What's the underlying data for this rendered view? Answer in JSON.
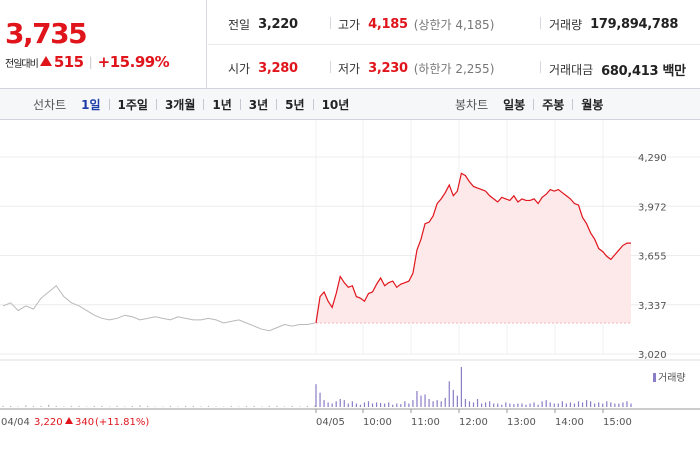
{
  "quote": {
    "price": "3,735",
    "change_label": "전일대비",
    "change_value": "515",
    "change_rate": "+15.99%",
    "prev_close": {
      "label": "전일",
      "value": "3,220"
    },
    "open": {
      "label": "시가",
      "value": "3,280"
    },
    "high": {
      "label": "고가",
      "value": "4,185",
      "note": "(상한가 4,185)"
    },
    "low": {
      "label": "저가",
      "value": "3,230",
      "note": "(하한가 2,255)"
    },
    "volume": {
      "label": "거래량",
      "value": "179,894,788"
    },
    "amount": {
      "label": "거래대금",
      "value": "680,413 백만"
    }
  },
  "line_tabs": {
    "title": "선차트",
    "items": [
      {
        "label": "1일",
        "active": true
      },
      {
        "label": "1주일",
        "active": false
      },
      {
        "label": "3개월",
        "active": false
      },
      {
        "label": "1년",
        "active": false
      },
      {
        "label": "3년",
        "active": false
      },
      {
        "label": "5년",
        "active": false
      },
      {
        "label": "10년",
        "active": false
      }
    ]
  },
  "candle_tabs": {
    "title": "봉차트",
    "items": [
      {
        "label": "일봉"
      },
      {
        "label": "주봉"
      },
      {
        "label": "월봉"
      }
    ]
  },
  "colors": {
    "up": "#e0151c",
    "prev_line": "#b9b9b9",
    "area_fill": "#fde8ea",
    "volume": "#8a7cc6",
    "active_tab": "#1d3da5"
  },
  "chart_data": {
    "type": "line",
    "ylim": [
      3020,
      4290
    ],
    "y_ticks": [
      "4,290",
      "3,972",
      "3,655",
      "3,337",
      "3,020"
    ],
    "baseline": 3220,
    "x_ticks": [
      "04/04",
      "04/05",
      "10:00",
      "11:00",
      "12:00",
      "13:00",
      "14:00",
      "15:00"
    ],
    "prev_day_info": {
      "date": "04/04",
      "close": "3,220",
      "change": "340",
      "rate": "(+11.81%)"
    },
    "legend_volume": "거래량",
    "prev_day_series": {
      "name": "04/04",
      "values": [
        3330,
        3350,
        3300,
        3330,
        3310,
        3380,
        3420,
        3460,
        3390,
        3350,
        3330,
        3300,
        3270,
        3250,
        3240,
        3250,
        3270,
        3260,
        3240,
        3250,
        3260,
        3250,
        3240,
        3260,
        3250,
        3240,
        3240,
        3250,
        3240,
        3220,
        3230,
        3240,
        3220,
        3200,
        3180,
        3170,
        3190,
        3210,
        3200,
        3210,
        3210,
        3220
      ]
    },
    "today_series": {
      "name": "04/05",
      "x": [
        "09:00",
        "09:05",
        "09:10",
        "09:15",
        "09:20",
        "09:25",
        "09:30",
        "09:35",
        "09:40",
        "09:45",
        "09:50",
        "09:55",
        "10:00",
        "10:05",
        "10:10",
        "10:15",
        "10:20",
        "10:25",
        "10:30",
        "10:35",
        "10:40",
        "10:45",
        "10:50",
        "10:55",
        "11:00",
        "11:05",
        "11:10",
        "11:15",
        "11:20",
        "11:25",
        "11:30",
        "11:35",
        "11:40",
        "11:45",
        "11:50",
        "11:55",
        "12:00",
        "12:05",
        "12:10",
        "12:15",
        "12:20",
        "12:25",
        "12:30",
        "12:35",
        "12:40",
        "12:45",
        "12:50",
        "12:55",
        "13:00",
        "13:05",
        "13:10",
        "13:15",
        "13:20",
        "13:25",
        "13:30",
        "13:35",
        "13:40",
        "13:45",
        "13:50",
        "13:55",
        "14:00",
        "14:05",
        "14:10",
        "14:15",
        "14:20",
        "14:25",
        "14:30",
        "14:35",
        "14:40",
        "14:45",
        "14:50",
        "14:55",
        "15:00",
        "15:05",
        "15:10",
        "15:15",
        "15:20",
        "15:25",
        "15:30"
      ],
      "values": [
        3220,
        3390,
        3420,
        3360,
        3320,
        3410,
        3520,
        3480,
        3450,
        3460,
        3390,
        3380,
        3360,
        3410,
        3420,
        3470,
        3510,
        3460,
        3480,
        3490,
        3450,
        3470,
        3480,
        3490,
        3540,
        3690,
        3760,
        3860,
        3870,
        3910,
        3990,
        4020,
        4060,
        4110,
        4040,
        4070,
        4185,
        4170,
        4130,
        4100,
        4090,
        4080,
        4070,
        4040,
        4020,
        4000,
        4030,
        4020,
        4010,
        4040,
        4000,
        4020,
        4010,
        4010,
        4020,
        3990,
        4030,
        4050,
        4080,
        4070,
        4080,
        4060,
        4040,
        4020,
        3990,
        3980,
        3900,
        3860,
        3800,
        3760,
        3700,
        3680,
        3650,
        3630,
        3660,
        3690,
        3720,
        3735,
        3735
      ]
    },
    "volume_prev": [
      2,
      2,
      1,
      3,
      2,
      2,
      4,
      2,
      1,
      2,
      2,
      1,
      2,
      2,
      1,
      2,
      1,
      2,
      3,
      2,
      1,
      1,
      2,
      1,
      2,
      2,
      1,
      2,
      1,
      1,
      2,
      1,
      2,
      2,
      1,
      2,
      2,
      1,
      2,
      1,
      2,
      3
    ],
    "volume_today": [
      40,
      25,
      12,
      8,
      6,
      10,
      14,
      12,
      6,
      10,
      6,
      4,
      8,
      10,
      6,
      8,
      7,
      6,
      8,
      4,
      6,
      5,
      10,
      6,
      12,
      28,
      20,
      22,
      14,
      10,
      12,
      10,
      16,
      45,
      30,
      20,
      70,
      14,
      10,
      8,
      14,
      6,
      8,
      10,
      6,
      6,
      4,
      8,
      6,
      5,
      6,
      6,
      4,
      6,
      8,
      4,
      10,
      12,
      8,
      6,
      6,
      10,
      6,
      8,
      6,
      10,
      8,
      12,
      10,
      6,
      8,
      6,
      10,
      8,
      6,
      6,
      8,
      10,
      6
    ]
  }
}
